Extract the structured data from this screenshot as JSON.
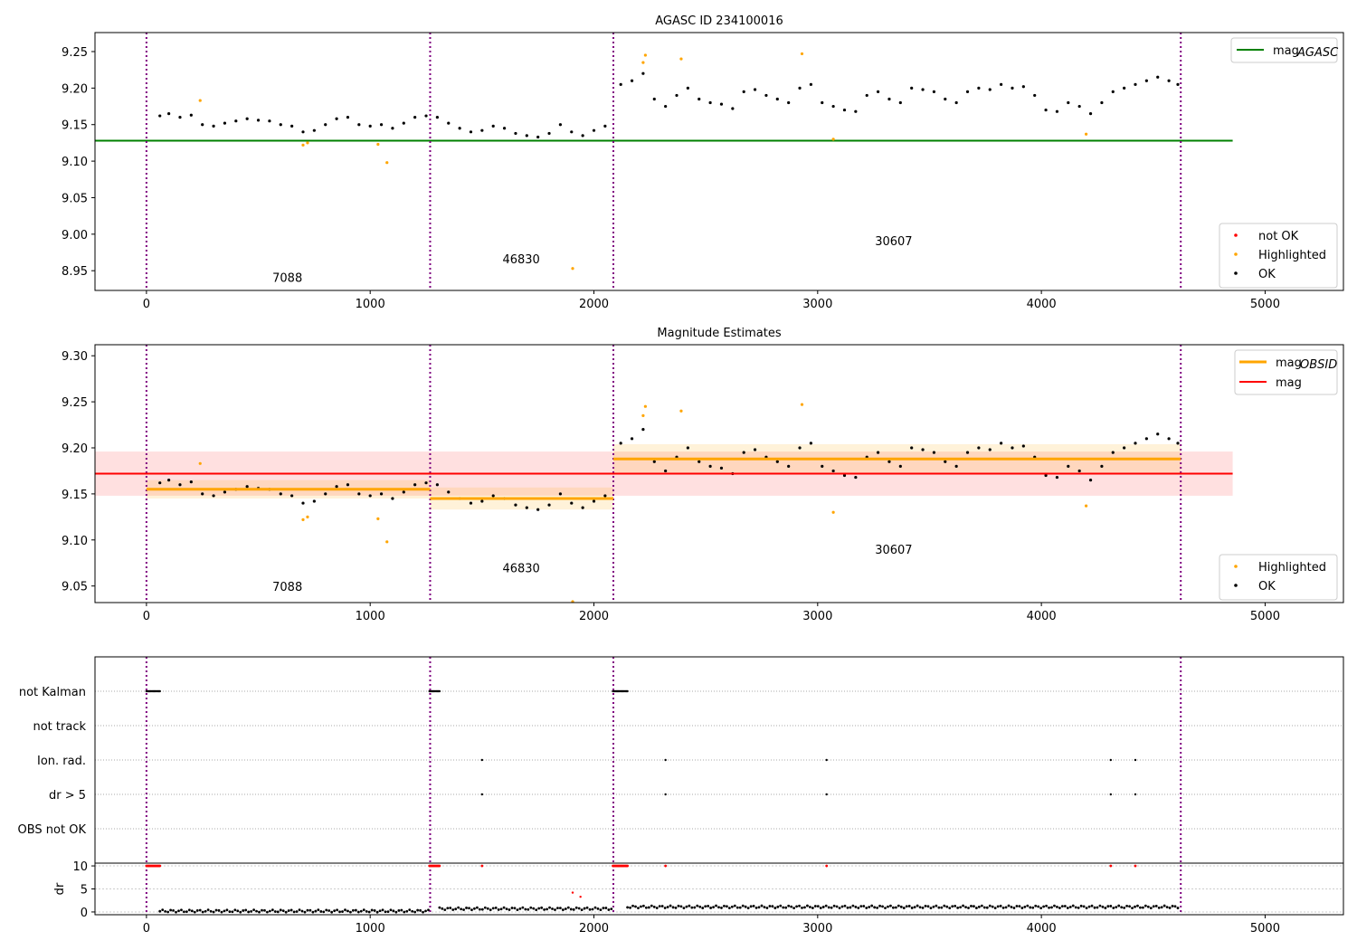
{
  "colors": {
    "ok": "#000000",
    "highlighted": "#ffa500",
    "not_ok": "#ff0000",
    "agasc": "#008000",
    "mag": "#ff0000",
    "obsid": "#ffa500",
    "vline": "#800080"
  },
  "chart_data": [
    {
      "type": "scatter",
      "title": "AGASC ID 234100016",
      "xlim": [
        -230,
        5350
      ],
      "ylim": [
        8.923,
        9.276
      ],
      "xticks": [
        0,
        1000,
        2000,
        3000,
        4000,
        5000
      ],
      "yticks": [
        8.95,
        9.0,
        9.05,
        9.1,
        9.15,
        9.2,
        9.25
      ],
      "legend_top": {
        "position": "top-right",
        "entries": [
          "mag_AGASC"
        ],
        "main": "mag",
        "sub": "AGASC"
      },
      "legend_bottom": {
        "position": "bottom-right",
        "entries": [
          "not OK",
          "Highlighted",
          "OK"
        ]
      },
      "mag_agasc": 9.128,
      "mag_agasc_xrange": [
        -230,
        4855
      ],
      "obsid_boundaries": [
        0,
        1268,
        2087,
        4623
      ],
      "obsid_labels": [
        {
          "text": "7088",
          "x": 630,
          "y": 8.935
        },
        {
          "text": "46830",
          "x": 1675,
          "y": 8.96
        },
        {
          "text": "30607",
          "x": 3340,
          "y": 8.985
        }
      ]
    },
    {
      "type": "scatter",
      "title": "Magnitude Estimates",
      "xlim": [
        -230,
        5350
      ],
      "ylim": [
        9.032,
        9.312
      ],
      "xticks": [
        0,
        1000,
        2000,
        3000,
        4000,
        5000
      ],
      "yticks": [
        9.05,
        9.1,
        9.15,
        9.2,
        9.25,
        9.3
      ],
      "legend_top": {
        "position": "top-right",
        "entries": [
          "mag_OBSID",
          "mag"
        ],
        "main": "mag",
        "sub": "OBSID",
        "mag_label": "mag"
      },
      "legend_bottom": {
        "position": "bottom-right",
        "entries": [
          "Highlighted",
          "OK"
        ]
      },
      "mag": 9.172,
      "mag_band": [
        9.148,
        9.196
      ],
      "mag_xrange": [
        -230,
        4855
      ],
      "obsid_means": [
        {
          "x0": 0,
          "x1": 1268,
          "mean": 9.155,
          "band": [
            9.145,
            9.165
          ]
        },
        {
          "x0": 1268,
          "x1": 2087,
          "mean": 9.145,
          "band": [
            9.133,
            9.157
          ]
        },
        {
          "x0": 2087,
          "x1": 4623,
          "mean": 9.188,
          "band": [
            9.172,
            9.204
          ]
        }
      ],
      "obsid_labels": [
        {
          "text": "7088",
          "x": 630,
          "y": 9.045
        },
        {
          "text": "46830",
          "x": 1675,
          "y": 9.065
        },
        {
          "text": "30607",
          "x": 3340,
          "y": 9.085
        }
      ]
    },
    {
      "type": "scatter",
      "title": "",
      "xlim": [
        -230,
        5350
      ],
      "xticks": [
        0,
        1000,
        2000,
        3000,
        4000,
        5000
      ],
      "flag_categories": [
        "not Kalman",
        "not track",
        "Ion. rad.",
        "dr > 5",
        "OBS not OK"
      ],
      "flags": {
        "not Kalman": [
          [
            0,
            60
          ],
          [
            1265,
            1310
          ],
          [
            2085,
            2150
          ]
        ],
        "Ion. rad.": [
          1500,
          2320,
          3040,
          4310,
          4420
        ],
        "dr > 5": [
          1500,
          2320,
          3040,
          4310,
          4420
        ]
      },
      "dr_ylabel": "dr",
      "dr_ylim": [
        -0.6,
        10.6
      ],
      "dr_yticks": [
        0,
        5,
        10
      ],
      "dr_clipped_x": [
        [
          0,
          60
        ],
        [
          1265,
          1310
        ],
        [
          2085,
          2150
        ],
        [
          1500,
          1500
        ],
        [
          2320,
          2320
        ],
        [
          3040,
          3040
        ],
        [
          4310,
          4310
        ],
        [
          4420,
          4420
        ]
      ],
      "dr_red_points": [
        [
          1905,
          4.2
        ],
        [
          1940,
          3.3
        ]
      ],
      "dr_levels": [
        {
          "x0": 60,
          "x1": 1265,
          "dr": 0.2
        },
        {
          "x0": 1310,
          "x1": 2085,
          "dr": 0.7
        },
        {
          "x0": 2150,
          "x1": 4620,
          "dr": 1.1
        }
      ]
    }
  ],
  "light_curve": {
    "ok": [
      [
        60,
        9.162
      ],
      [
        100,
        9.165
      ],
      [
        150,
        9.16
      ],
      [
        200,
        9.163
      ],
      [
        250,
        9.15
      ],
      [
        300,
        9.148
      ],
      [
        350,
        9.152
      ],
      [
        400,
        9.155
      ],
      [
        450,
        9.158
      ],
      [
        500,
        9.156
      ],
      [
        550,
        9.155
      ],
      [
        600,
        9.15
      ],
      [
        650,
        9.148
      ],
      [
        700,
        9.14
      ],
      [
        750,
        9.142
      ],
      [
        800,
        9.15
      ],
      [
        850,
        9.158
      ],
      [
        900,
        9.16
      ],
      [
        950,
        9.15
      ],
      [
        1000,
        9.148
      ],
      [
        1050,
        9.15
      ],
      [
        1100,
        9.145
      ],
      [
        1150,
        9.152
      ],
      [
        1200,
        9.16
      ],
      [
        1250,
        9.162
      ],
      [
        1300,
        9.16
      ],
      [
        1350,
        9.152
      ],
      [
        1400,
        9.145
      ],
      [
        1450,
        9.14
      ],
      [
        1500,
        9.142
      ],
      [
        1550,
        9.148
      ],
      [
        1600,
        9.145
      ],
      [
        1650,
        9.138
      ],
      [
        1700,
        9.135
      ],
      [
        1750,
        9.133
      ],
      [
        1800,
        9.138
      ],
      [
        1850,
        9.15
      ],
      [
        1900,
        9.14
      ],
      [
        1950,
        9.135
      ],
      [
        2000,
        9.142
      ],
      [
        2050,
        9.148
      ],
      [
        2120,
        9.205
      ],
      [
        2170,
        9.21
      ],
      [
        2220,
        9.22
      ],
      [
        2270,
        9.185
      ],
      [
        2320,
        9.175
      ],
      [
        2370,
        9.19
      ],
      [
        2420,
        9.2
      ],
      [
        2470,
        9.185
      ],
      [
        2520,
        9.18
      ],
      [
        2570,
        9.178
      ],
      [
        2620,
        9.172
      ],
      [
        2670,
        9.195
      ],
      [
        2720,
        9.198
      ],
      [
        2770,
        9.19
      ],
      [
        2820,
        9.185
      ],
      [
        2870,
        9.18
      ],
      [
        2920,
        9.2
      ],
      [
        2970,
        9.205
      ],
      [
        3020,
        9.18
      ],
      [
        3070,
        9.175
      ],
      [
        3120,
        9.17
      ],
      [
        3170,
        9.168
      ],
      [
        3220,
        9.19
      ],
      [
        3270,
        9.195
      ],
      [
        3320,
        9.185
      ],
      [
        3370,
        9.18
      ],
      [
        3420,
        9.2
      ],
      [
        3470,
        9.198
      ],
      [
        3520,
        9.195
      ],
      [
        3570,
        9.185
      ],
      [
        3620,
        9.18
      ],
      [
        3670,
        9.195
      ],
      [
        3720,
        9.2
      ],
      [
        3770,
        9.198
      ],
      [
        3820,
        9.205
      ],
      [
        3870,
        9.2
      ],
      [
        3920,
        9.202
      ],
      [
        3970,
        9.19
      ],
      [
        4020,
        9.17
      ],
      [
        4070,
        9.168
      ],
      [
        4120,
        9.18
      ],
      [
        4170,
        9.175
      ],
      [
        4220,
        9.165
      ],
      [
        4270,
        9.18
      ],
      [
        4320,
        9.195
      ],
      [
        4370,
        9.2
      ],
      [
        4420,
        9.205
      ],
      [
        4470,
        9.21
      ],
      [
        4520,
        9.215
      ],
      [
        4570,
        9.21
      ],
      [
        4610,
        9.205
      ]
    ],
    "highlighted": [
      [
        240,
        9.183
      ],
      [
        700,
        9.122
      ],
      [
        720,
        9.125
      ],
      [
        1035,
        9.123
      ],
      [
        1075,
        9.098
      ],
      [
        1905,
        8.953
      ],
      [
        2220,
        9.235
      ],
      [
        2230,
        9.245
      ],
      [
        2390,
        9.24
      ],
      [
        2930,
        9.247
      ],
      [
        3070,
        9.13
      ],
      [
        4200,
        9.137
      ]
    ]
  }
}
